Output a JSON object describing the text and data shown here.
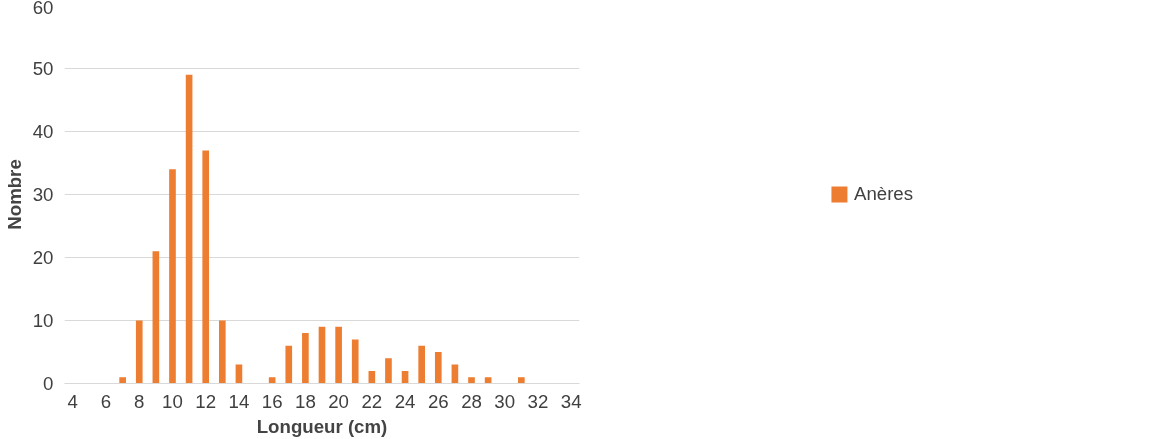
{
  "chart_data": {
    "type": "bar",
    "xlabel": "Longueur (cm)",
    "ylabel": "Nombre",
    "categories": [
      "4",
      null,
      "6",
      null,
      "8",
      null,
      "10",
      null,
      "12",
      null,
      "14",
      null,
      "16",
      null,
      "18",
      null,
      "20",
      null,
      "22",
      null,
      "24",
      null,
      "26",
      null,
      "28",
      null,
      "30",
      null,
      "32",
      null,
      "34"
    ],
    "series": [
      {
        "name": "Anères",
        "color": "#ed7d31",
        "values": [
          0,
          0,
          0,
          1,
          10,
          21,
          34,
          49,
          37,
          10,
          3,
          0,
          1,
          6,
          8,
          9,
          9,
          7,
          2,
          4,
          2,
          6,
          5,
          3,
          1,
          1,
          0,
          1,
          0,
          0,
          0
        ]
      }
    ],
    "ylim": [
      0,
      60
    ],
    "yticks": [
      0,
      10,
      20,
      30,
      40,
      50,
      60
    ],
    "grid": "y",
    "legend": "right"
  }
}
